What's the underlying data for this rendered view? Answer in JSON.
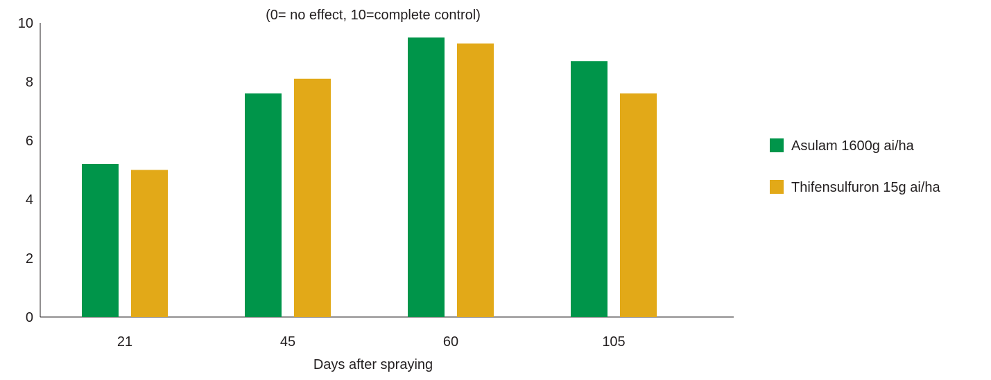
{
  "chart_data": {
    "type": "bar",
    "subtitle": "(0= no effect, 10=complete control)",
    "xlabel": "Days after spraying",
    "ylabel": "",
    "categories": [
      "21",
      "45",
      "60",
      "105"
    ],
    "ylim": [
      0,
      10
    ],
    "yticks": [
      "0",
      "2",
      "4",
      "6",
      "8",
      "10"
    ],
    "grid": false,
    "legend_position": "right",
    "series": [
      {
        "name": "Asulam 1600g ai/ha",
        "color": "#00954a",
        "values": [
          5.2,
          7.6,
          9.5,
          8.7
        ]
      },
      {
        "name": "Thifensulfuron 15g ai/ha",
        "color": "#e2a918",
        "values": [
          5.0,
          8.1,
          9.3,
          7.6
        ]
      }
    ]
  }
}
